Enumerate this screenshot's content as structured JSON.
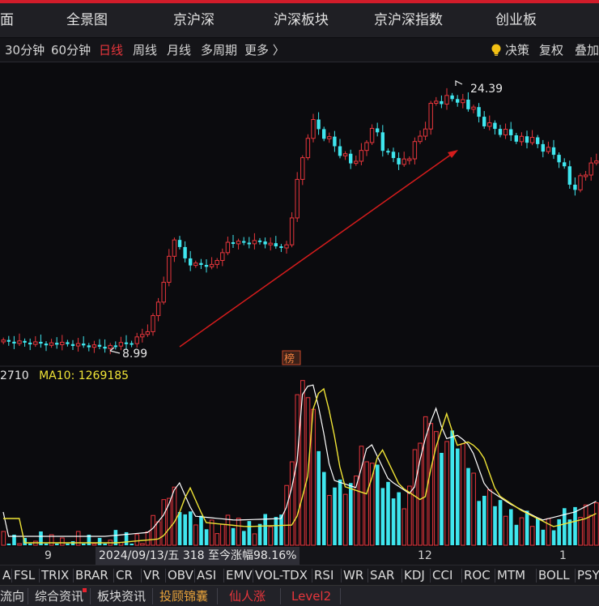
{
  "top_nav": {
    "items": [
      "面",
      "全景图",
      "京沪深",
      "沪深板块",
      "京沪深指数",
      "创业板"
    ]
  },
  "period_bar": {
    "items": [
      "30分钟",
      "60分钟",
      "日线",
      "周线",
      "月线",
      "多周期",
      "更多 〉"
    ],
    "active": "日线",
    "right_items": [
      "决策",
      "复权",
      "叠加"
    ]
  },
  "chart_data": {
    "type": "candlestick",
    "price_labels": {
      "low": "8.99",
      "high": "24.39"
    },
    "badge": "榜",
    "volume_legend": {
      "vol_text": "2710",
      "ma10_label": "MA10: 1269185"
    },
    "x_ticks": [
      "9",
      "12",
      "1"
    ],
    "date_info": "2024/09/13/五 318 至今涨幅98.16%",
    "colors": {
      "up": "#e8363c",
      "down": "#3fe6ee",
      "ma5": "#ffffff",
      "ma10": "#f0e436",
      "trend": "#d41c1c"
    }
  },
  "indicators": [
    "A",
    "FSL",
    "TRIX",
    "BRAR",
    "CR",
    "VR",
    "OBV",
    "ASI",
    "EMV",
    "VOL-TDX",
    "RSI",
    "WR",
    "SAR",
    "KDJ",
    "CCI",
    "ROC",
    "MTM",
    "BOLL",
    "PSY"
  ],
  "bottom_tabs": [
    {
      "label": "流向",
      "color": "#dcdcdc"
    },
    {
      "label": "综合资讯",
      "color": "#dcdcdc"
    },
    {
      "label": "板块资讯",
      "color": "#dcdcdc"
    },
    {
      "label": "投顾锦囊",
      "color": "#e8a23a"
    },
    {
      "label": "仙人涨",
      "color": "#e8363c"
    },
    {
      "label": "Level2",
      "color": "#e8363c"
    }
  ]
}
